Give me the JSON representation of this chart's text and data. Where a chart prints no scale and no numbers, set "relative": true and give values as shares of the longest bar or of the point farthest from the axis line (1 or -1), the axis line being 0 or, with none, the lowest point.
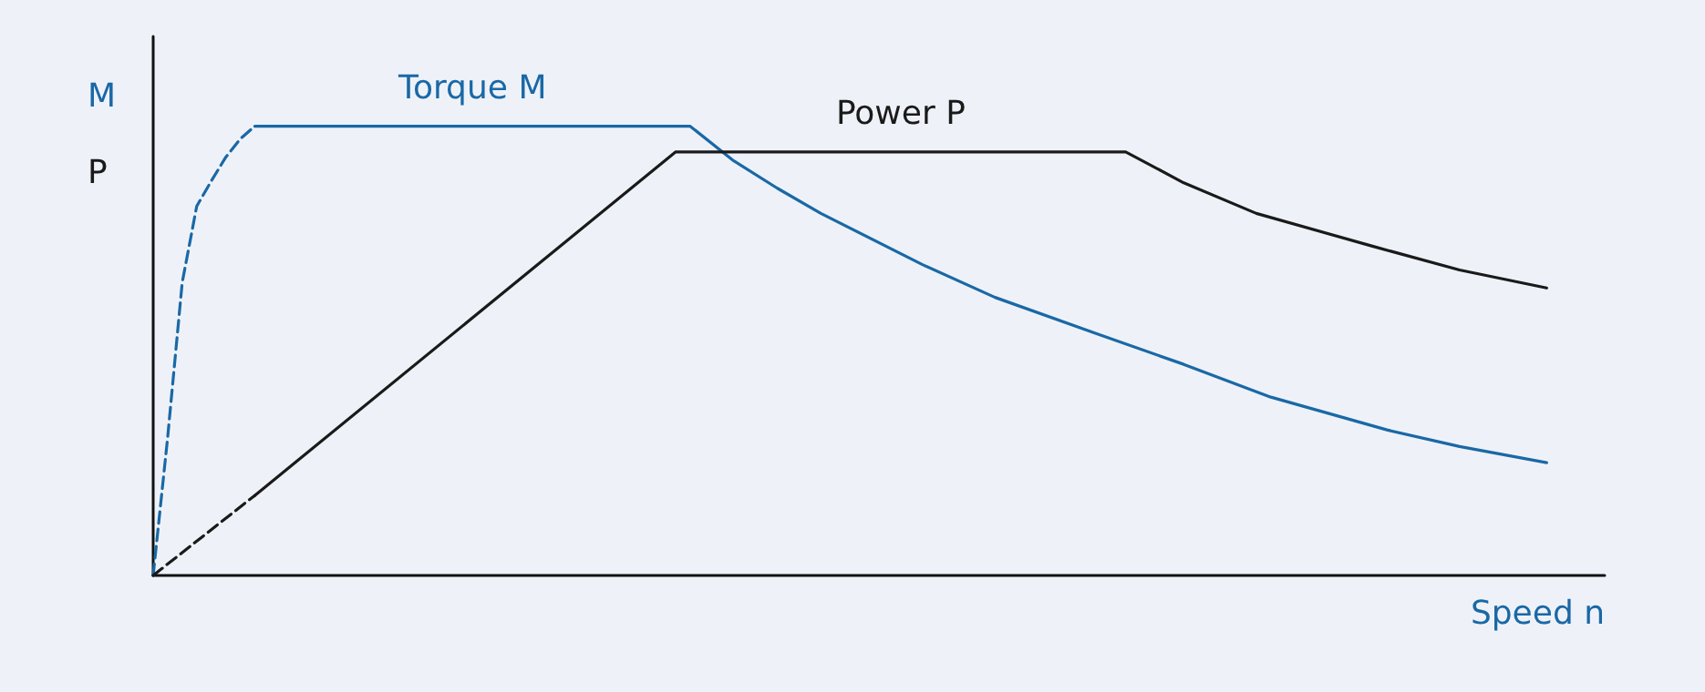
{
  "chart_data": {
    "type": "line",
    "relative": true,
    "xlabel": "Speed n",
    "annotations": [
      "M",
      "P"
    ],
    "grid": false,
    "legend": false,
    "categories": [
      null,
      null,
      null,
      null,
      null,
      null,
      null,
      null,
      null,
      null,
      null,
      null,
      null,
      null,
      null,
      null,
      null,
      null,
      null,
      null,
      null,
      null,
      null,
      null,
      null,
      null,
      null,
      null,
      null,
      null,
      null,
      null,
      null,
      null,
      null,
      null,
      null,
      null,
      null,
      null,
      null,
      null,
      null,
      null,
      null,
      null,
      null,
      null,
      null,
      null,
      null,
      null,
      null,
      null,
      null,
      null,
      null,
      null,
      null,
      null,
      null,
      null,
      null,
      null,
      null,
      null,
      null,
      null,
      null,
      null,
      null,
      null,
      null,
      null,
      null,
      null,
      null,
      null,
      null,
      null,
      null,
      null,
      null,
      null,
      null,
      null,
      null,
      null,
      null,
      null,
      null,
      null,
      null,
      null,
      null,
      null,
      null,
      null,
      null,
      null,
      null
    ],
    "series": [
      {
        "name": "Torque M",
        "color": "#1a68a6",
        "line_style": "solid",
        "values": [
          null,
          null,
          null,
          null,
          null,
          null,
          null,
          1,
          null,
          null,
          null,
          null,
          null,
          null,
          null,
          null,
          null,
          null,
          null,
          null,
          null,
          null,
          null,
          null,
          null,
          null,
          null,
          null,
          null,
          null,
          null,
          null,
          null,
          null,
          null,
          null,
          null,
          1,
          null,
          null,
          0.923,
          null,
          null,
          0.862,
          null,
          null,
          0.806,
          null,
          null,
          null,
          null,
          null,
          null,
          0.692,
          null,
          null,
          null,
          null,
          0.619,
          null,
          null,
          null,
          null,
          null,
          null,
          0.538,
          null,
          null,
          null,
          null,
          null,
          0.47,
          null,
          null,
          null,
          null,
          null,
          0.397,
          null,
          null,
          null,
          null,
          null,
          null,
          null,
          0.324,
          null,
          null,
          null,
          null,
          0.287,
          null,
          null,
          null,
          null,
          null,
          0.251,
          null,
          null,
          null,
          null
        ]
      },
      {
        "color": "#1a68a6",
        "line_style": "dashed",
        "values": [
          0,
          0.308,
          0.652,
          0.822,
          0.878,
          0.931,
          0.972,
          1,
          null,
          null,
          null,
          null,
          null,
          null,
          null,
          null,
          null,
          null,
          null,
          null,
          null,
          null,
          null,
          null,
          null,
          null,
          null,
          null,
          null,
          null,
          null,
          null,
          null,
          null,
          null,
          null,
          null,
          null,
          null,
          null,
          null,
          null,
          null,
          null,
          null,
          null,
          null,
          null,
          null,
          null,
          null,
          null,
          null,
          null,
          null,
          null,
          null,
          null,
          null,
          null,
          null,
          null,
          null,
          null,
          null,
          null,
          null,
          null,
          null,
          null,
          null,
          null,
          null,
          null,
          null,
          null,
          null,
          null,
          null,
          null,
          null,
          null,
          null,
          null,
          null,
          null,
          null,
          null,
          null,
          null,
          null,
          null,
          null,
          null,
          null,
          null,
          null,
          null,
          null,
          null,
          null
        ]
      },
      {
        "name": "Power P",
        "color": "#1a1a1a",
        "line_style": "solid",
        "values": [
          null,
          null,
          null,
          null,
          null,
          null,
          null,
          0.178,
          null,
          null,
          null,
          null,
          null,
          null,
          null,
          null,
          null,
          null,
          null,
          null,
          null,
          null,
          null,
          null,
          null,
          null,
          null,
          null,
          null,
          null,
          null,
          null,
          null,
          null,
          null,
          null,
          0.943,
          null,
          null,
          null,
          null,
          null,
          null,
          null,
          null,
          null,
          null,
          null,
          null,
          null,
          null,
          null,
          null,
          null,
          null,
          null,
          null,
          null,
          null,
          null,
          null,
          null,
          null,
          null,
          null,
          null,
          null,
          0.943,
          null,
          null,
          null,
          0.874,
          null,
          null,
          null,
          null,
          0.806,
          null,
          null,
          null,
          null,
          null,
          null,
          null,
          0.733,
          null,
          null,
          null,
          null,
          null,
          0.68,
          null,
          null,
          null,
          null,
          null,
          0.64,
          null,
          null,
          null,
          null
        ]
      },
      {
        "color": "#1a1a1a",
        "line_style": "dashed",
        "values": [
          0,
          null,
          null,
          null,
          null,
          null,
          null,
          0.178,
          null,
          null,
          null,
          null,
          null,
          null,
          null,
          null,
          null,
          null,
          null,
          null,
          null,
          null,
          null,
          null,
          null,
          null,
          null,
          null,
          null,
          null,
          null,
          null,
          null,
          null,
          null,
          null,
          null,
          null,
          null,
          null,
          null,
          null,
          null,
          null,
          null,
          null,
          null,
          null,
          null,
          null,
          null,
          null,
          null,
          null,
          null,
          null,
          null,
          null,
          null,
          null,
          null,
          null,
          null,
          null,
          null,
          null,
          null,
          null,
          null,
          null,
          null,
          null,
          null,
          null,
          null,
          null,
          null,
          null,
          null,
          null,
          null,
          null,
          null,
          null,
          null,
          null,
          null,
          null,
          null,
          null,
          null,
          null,
          null,
          null,
          null,
          null,
          null,
          null,
          null,
          null,
          null
        ]
      }
    ]
  }
}
